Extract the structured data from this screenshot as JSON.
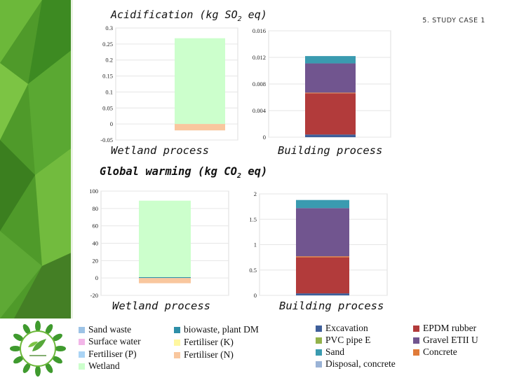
{
  "slide": {
    "section_label": "5. STUDY CASE 1"
  },
  "sections": [
    {
      "title_main": "Acidification (kg SO",
      "title_sub": "2",
      "title_end": " eq)"
    },
    {
      "title_main": "Global warming (kg CO",
      "title_sub": "2",
      "title_end": " eq)"
    }
  ],
  "captions": {
    "wetland": "Wetland process",
    "building": "Building process"
  },
  "colors": {
    "sand_waste": "#9dc3e6",
    "surface_water": "#f2b6e8",
    "fertiliser_p": "#aad4f5",
    "wetland": "#ccffcc",
    "biowaste": "#2e8fa8",
    "fertiliser_k": "#fff7a0",
    "fertiliser_n": "#f9c79e",
    "excavation": "#3f5f9a",
    "pvc_pipe": "#92b24a",
    "sand": "#3a9bb0",
    "disposal_concrete": "#9ab3d6",
    "epdm_rubber": "#b23b3b",
    "gravel": "#71558f",
    "concrete": "#e07b39"
  },
  "legend": [
    {
      "key": "sand_waste",
      "label": "Sand waste"
    },
    {
      "key": "surface_water",
      "label": "Surface water"
    },
    {
      "key": "fertiliser_p",
      "label": "Fertiliser (P)"
    },
    {
      "key": "wetland",
      "label": "Wetland"
    },
    {
      "key": "biowaste",
      "label": "biowaste, plant DM"
    },
    {
      "key": "fertiliser_k",
      "label": "Fertiliser (K)"
    },
    {
      "key": "fertiliser_n",
      "label": "Fertiliser (N)"
    },
    {
      "key": "excavation",
      "label": "Excavation"
    },
    {
      "key": "pvc_pipe",
      "label": "PVC pipe E"
    },
    {
      "key": "sand",
      "label": "Sand"
    },
    {
      "key": "disposal_concrete",
      "label": "Disposal, concrete"
    },
    {
      "key": "epdm_rubber",
      "label": "EPDM rubber"
    },
    {
      "key": "gravel",
      "label": "Gravel ETII U"
    },
    {
      "key": "concrete",
      "label": "Concrete"
    }
  ],
  "chart_data": [
    {
      "type": "bar",
      "stacked": true,
      "categories": [
        "Wetland process"
      ],
      "ylim": [
        -0.05,
        0.3
      ],
      "yticks": [
        "-0.05",
        "0",
        "0.05",
        "0.1",
        "0.15",
        "0.2",
        "0.25",
        "0.3"
      ],
      "ytick_values": [
        -0.05,
        0,
        0.05,
        0.1,
        0.15,
        0.2,
        0.25,
        0.3
      ],
      "grid": true,
      "segments": [
        {
          "key": "wetland",
          "value": 0.268
        },
        {
          "key": "fertiliser_n",
          "value": -0.02
        }
      ]
    },
    {
      "type": "bar",
      "stacked": true,
      "categories": [
        "Building process"
      ],
      "ylim": [
        0,
        0.016
      ],
      "yticks": [
        "0",
        "0.004",
        "0.008",
        "0.012",
        "0.016"
      ],
      "ytick_values": [
        0,
        0.004,
        0.008,
        0.012,
        0.016
      ],
      "grid": true,
      "segments": [
        {
          "key": "excavation",
          "value": 0.0004
        },
        {
          "key": "epdm_rubber",
          "value": 0.0062
        },
        {
          "key": "concrete",
          "value": 0.0001
        },
        {
          "key": "gravel",
          "value": 0.0044
        },
        {
          "key": "sand",
          "value": 0.0011
        }
      ]
    },
    {
      "type": "bar",
      "stacked": true,
      "categories": [
        "Wetland process"
      ],
      "ylim": [
        -20,
        100
      ],
      "yticks": [
        "-20",
        "0",
        "20",
        "40",
        "60",
        "80",
        "100"
      ],
      "ytick_values": [
        -20,
        0,
        20,
        40,
        60,
        80,
        100
      ],
      "grid": true,
      "segments": [
        {
          "key": "biowaste",
          "value": 1
        },
        {
          "key": "wetland",
          "value": 88
        },
        {
          "key": "fertiliser_n",
          "value": -6
        }
      ]
    },
    {
      "type": "bar",
      "stacked": true,
      "categories": [
        "Building process"
      ],
      "ylim": [
        0,
        2
      ],
      "yticks": [
        "0",
        "0.5",
        "1",
        "1.5",
        "2"
      ],
      "ytick_values": [
        0,
        0.5,
        1,
        1.5,
        2
      ],
      "grid": true,
      "segments": [
        {
          "key": "excavation",
          "value": 0.04
        },
        {
          "key": "epdm_rubber",
          "value": 0.71
        },
        {
          "key": "concrete",
          "value": 0.02
        },
        {
          "key": "gravel",
          "value": 0.95
        },
        {
          "key": "sand",
          "value": 0.16
        }
      ]
    }
  ]
}
